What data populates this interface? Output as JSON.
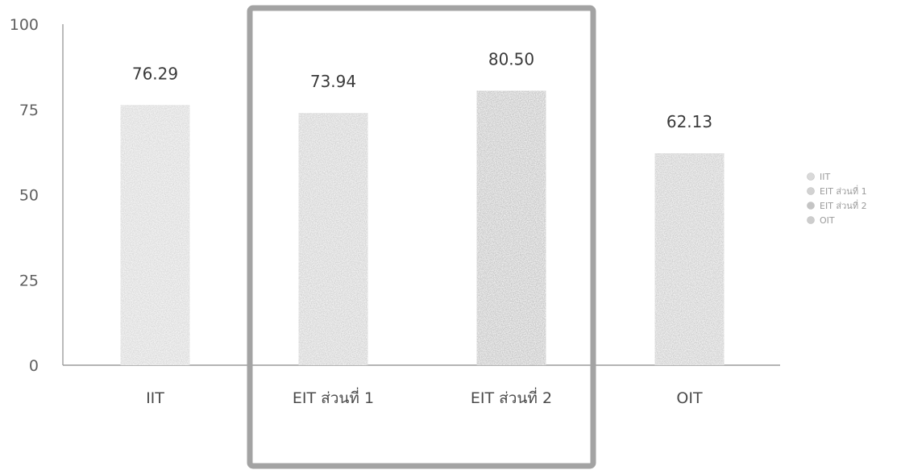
{
  "chart_data": {
    "type": "bar",
    "categories": [
      "IIT",
      "EIT ส่วนที่ 1",
      "EIT ส่วนที่ 2",
      "OIT"
    ],
    "values": [
      76.29,
      73.94,
      80.5,
      62.13
    ],
    "data_labels": [
      "76.29",
      "73.94",
      "80.50",
      "62.13"
    ],
    "ylim": [
      0,
      100
    ],
    "yticks": [
      0,
      25,
      50,
      75,
      100
    ],
    "legend": {
      "placement": "right",
      "entries": [
        "IIT",
        "EIT ส่วนที่ 1",
        "EIT ส่วนที่ 2",
        "OIT"
      ]
    },
    "highlight": {
      "categories": [
        "EIT ส่วนที่ 1",
        "EIT ส่วนที่ 2"
      ],
      "color": "#a3a3a3"
    },
    "colors": [
      "#d9d9d9",
      "#d2d2d2",
      "#c4c4c4",
      "#cdcdcd"
    ],
    "axis_color": "#9c9c9c",
    "grid": false
  }
}
